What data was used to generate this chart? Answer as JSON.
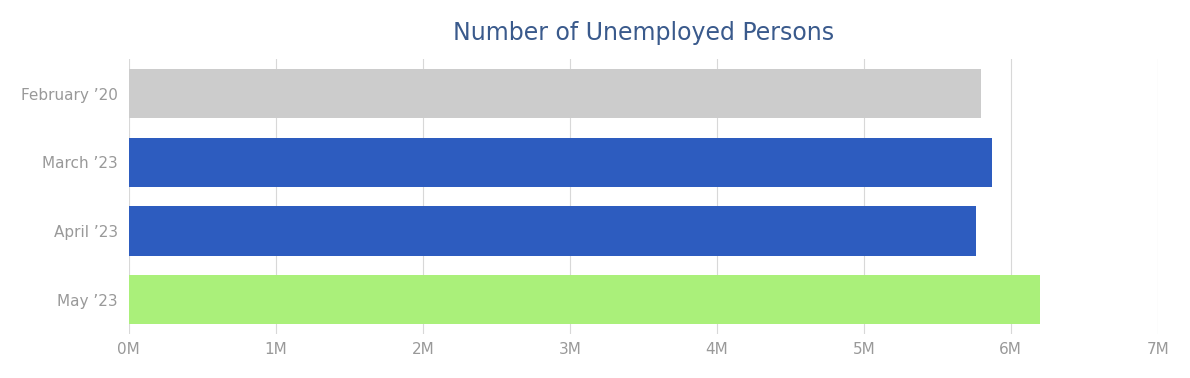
{
  "title": "Number of Unemployed Persons",
  "title_color": "#3a5a8c",
  "categories": [
    "February ’20",
    "March ’23",
    "April ’23",
    "May ’23"
  ],
  "values": [
    5800000,
    5870000,
    5760000,
    6200000
  ],
  "bar_colors": [
    "#cccccc",
    "#2d5cbf",
    "#2d5cbf",
    "#aaf07a"
  ],
  "xlim": [
    0,
    7000000
  ],
  "xtick_values": [
    0,
    1000000,
    2000000,
    3000000,
    4000000,
    5000000,
    6000000,
    7000000
  ],
  "xtick_labels": [
    "0M",
    "1M",
    "2M",
    "3M",
    "4M",
    "5M",
    "6M",
    "7M"
  ],
  "background_color": "#ffffff",
  "grid_color": "#d8d8d8",
  "bar_height": 0.72,
  "title_fontsize": 17,
  "tick_fontsize": 11,
  "ylabel_fontsize": 11
}
